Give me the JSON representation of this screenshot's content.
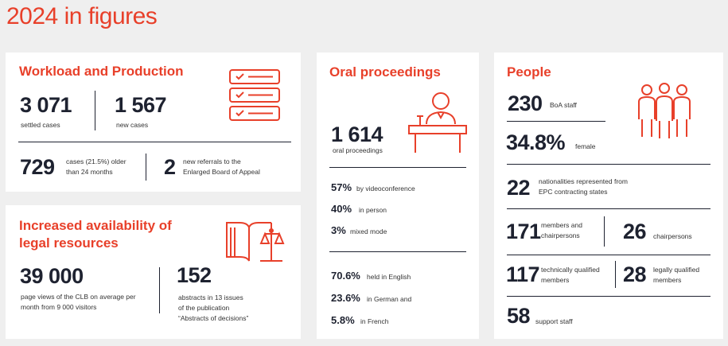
{
  "page": {
    "title": "2024 in figures"
  },
  "workload": {
    "heading": "Workload and Production",
    "settled_value": "3 071",
    "settled_label": "settled cases",
    "new_value": "1 567",
    "new_label": "new cases",
    "older_value": "729",
    "older_label_1": "cases (21.5%) older",
    "older_label_2": "than 24 months",
    "referrals_value": "2",
    "referrals_label_1": "new referrals to the",
    "referrals_label_2": "Enlarged Board of Appeal"
  },
  "legal": {
    "heading_1": "Increased availability of",
    "heading_2": "legal resources",
    "views_value": "39 000",
    "views_label_1": "page views of the CLB on average per",
    "views_label_2": "month from 9 000 visitors",
    "abstracts_value": "152",
    "abstracts_label_1": "abstracts in 13 issues",
    "abstracts_label_2": "of the publication",
    "abstracts_label_3": "“Abstracts of decisions”"
  },
  "oral": {
    "heading": "Oral proceedings",
    "total_value": "1 614",
    "total_label": "oral proceedings",
    "video_value": "57%",
    "video_label": "by videoconference",
    "person_value": "40%",
    "person_label": "in person",
    "mixed_value": "3%",
    "mixed_label": "mixed mode",
    "english_value": "70.6%",
    "english_label": "held in English",
    "german_value": "23.6%",
    "german_label": "in German and",
    "french_value": "5.8%",
    "french_label": "in French"
  },
  "people": {
    "heading": "People",
    "staff_value": "230",
    "staff_label": "BoA staff",
    "female_value": "34.8%",
    "female_label": "female",
    "nat_value": "22",
    "nat_label_1": "nationalities represented from",
    "nat_label_2": "EPC contracting states",
    "members_value": "171",
    "members_label_1": "members and",
    "members_label_2": "chairpersons",
    "chair_value": "26",
    "chair_label": "chairpersons",
    "tech_value": "117",
    "tech_label_1": "technically qualified",
    "tech_label_2": "members",
    "legal_value": "28",
    "legal_label_1": "legally qualified",
    "legal_label_2": "members",
    "support_value": "58",
    "support_label": "support staff"
  },
  "colors": {
    "accent": "#e8402a",
    "text": "#1e2230",
    "background": "#efefef",
    "card": "#ffffff"
  },
  "icons": [
    "checklist-icon",
    "podium-speaker-icon",
    "people-group-icon",
    "book-scales-icon"
  ]
}
